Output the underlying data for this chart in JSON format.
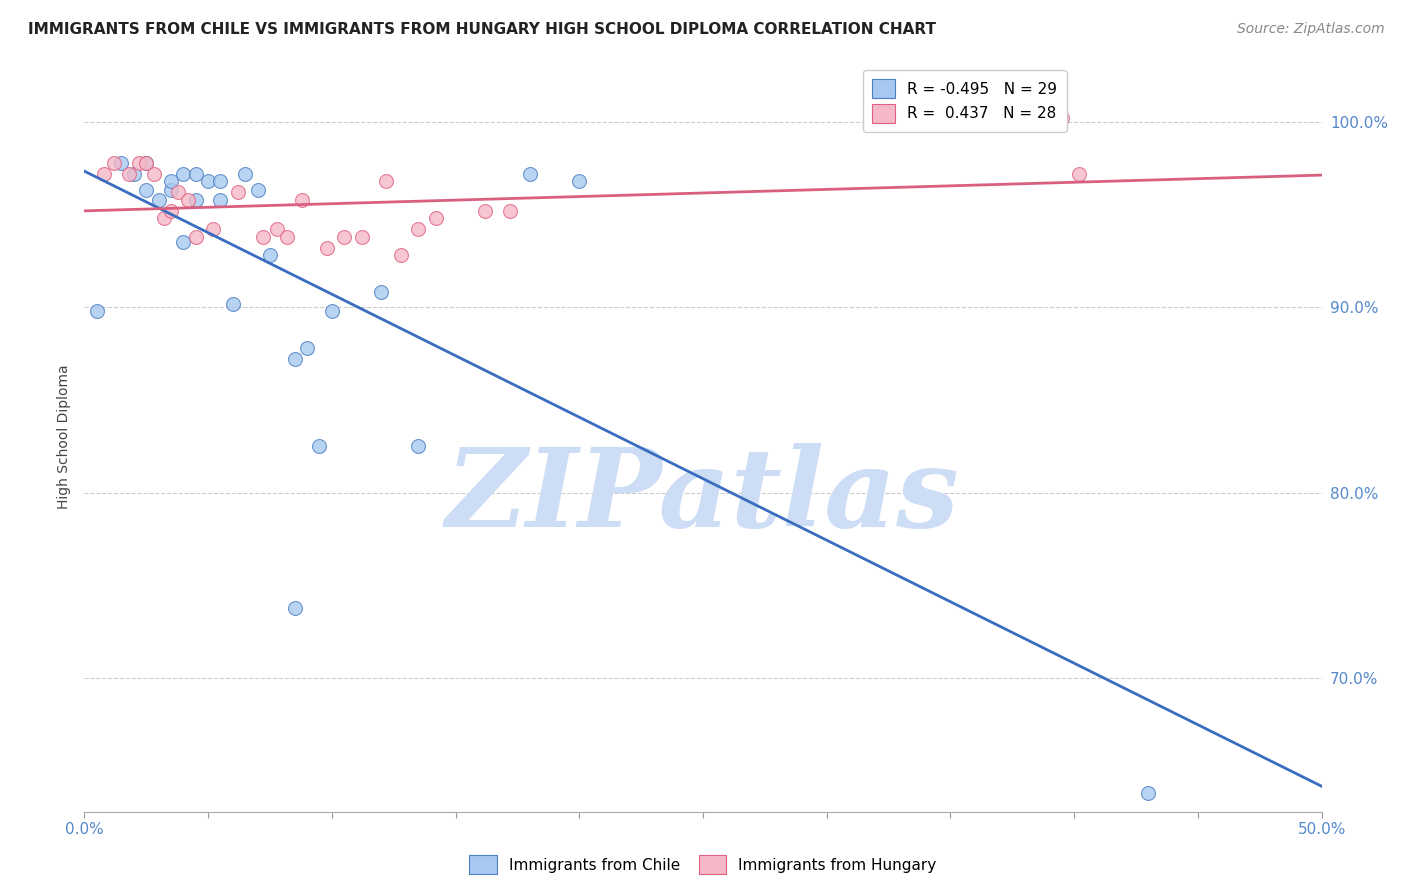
{
  "title": "IMMIGRANTS FROM CHILE VS IMMIGRANTS FROM HUNGARY HIGH SCHOOL DIPLOMA CORRELATION CHART",
  "source": "Source: ZipAtlas.com",
  "ylabel": "High School Diploma",
  "xlim": [
    0.0,
    0.5
  ],
  "ylim": [
    0.628,
    1.032
  ],
  "xticks": [
    0.0,
    0.05,
    0.1,
    0.15,
    0.2,
    0.25,
    0.3,
    0.35,
    0.4,
    0.45,
    0.5
  ],
  "xtick_labels_show": [
    "0.0%",
    "",
    "",
    "",
    "",
    "",
    "",
    "",
    "",
    "",
    "50.0%"
  ],
  "yticks": [
    0.7,
    0.8,
    0.9,
    1.0
  ],
  "ytick_labels": [
    "70.0%",
    "80.0%",
    "90.0%",
    "100.0%"
  ],
  "chile_color": "#a8c8f0",
  "hungary_color": "#f5b8c8",
  "chile_edge_color": "#4a7fc0",
  "hungary_edge_color": "#e06080",
  "chile_line_color": "#3a6dbf",
  "hungary_line_color": "#d95f7f",
  "legend_r_chile": "-0.495",
  "legend_n_chile": "29",
  "legend_r_hungary": " 0.437",
  "legend_n_hungary": "28",
  "watermark": "ZIPatlas",
  "watermark_color": "#ccddf5",
  "background_color": "#ffffff",
  "grid_color": "#cccccc",
  "chile_scatter_x": [
    0.005,
    0.015,
    0.02,
    0.025,
    0.025,
    0.03,
    0.035,
    0.035,
    0.04,
    0.04,
    0.045,
    0.045,
    0.05,
    0.055,
    0.055,
    0.06,
    0.065,
    0.07,
    0.075,
    0.085,
    0.09,
    0.095,
    0.1,
    0.12,
    0.135,
    0.18,
    0.2,
    0.085,
    0.43
  ],
  "chile_scatter_y": [
    0.898,
    0.978,
    0.972,
    0.978,
    0.963,
    0.958,
    0.963,
    0.968,
    0.972,
    0.935,
    0.958,
    0.972,
    0.968,
    0.958,
    0.968,
    0.902,
    0.972,
    0.963,
    0.928,
    0.872,
    0.878,
    0.825,
    0.898,
    0.908,
    0.825,
    0.972,
    0.968,
    0.738,
    0.638
  ],
  "hungary_scatter_x": [
    0.008,
    0.012,
    0.018,
    0.022,
    0.025,
    0.028,
    0.032,
    0.035,
    0.038,
    0.042,
    0.045,
    0.052,
    0.062,
    0.072,
    0.078,
    0.082,
    0.088,
    0.098,
    0.105,
    0.112,
    0.122,
    0.128,
    0.135,
    0.142,
    0.162,
    0.172,
    0.395,
    0.402
  ],
  "hungary_scatter_y": [
    0.972,
    0.978,
    0.972,
    0.978,
    0.978,
    0.972,
    0.948,
    0.952,
    0.962,
    0.958,
    0.938,
    0.942,
    0.962,
    0.938,
    0.942,
    0.938,
    0.958,
    0.932,
    0.938,
    0.938,
    0.968,
    0.928,
    0.942,
    0.948,
    0.952,
    0.952,
    1.002,
    0.972
  ],
  "chile_marker_size": 100,
  "hungary_marker_size": 100,
  "title_fontsize": 11,
  "axis_label_fontsize": 10,
  "tick_fontsize": 11,
  "legend_fontsize": 11,
  "source_fontsize": 10
}
